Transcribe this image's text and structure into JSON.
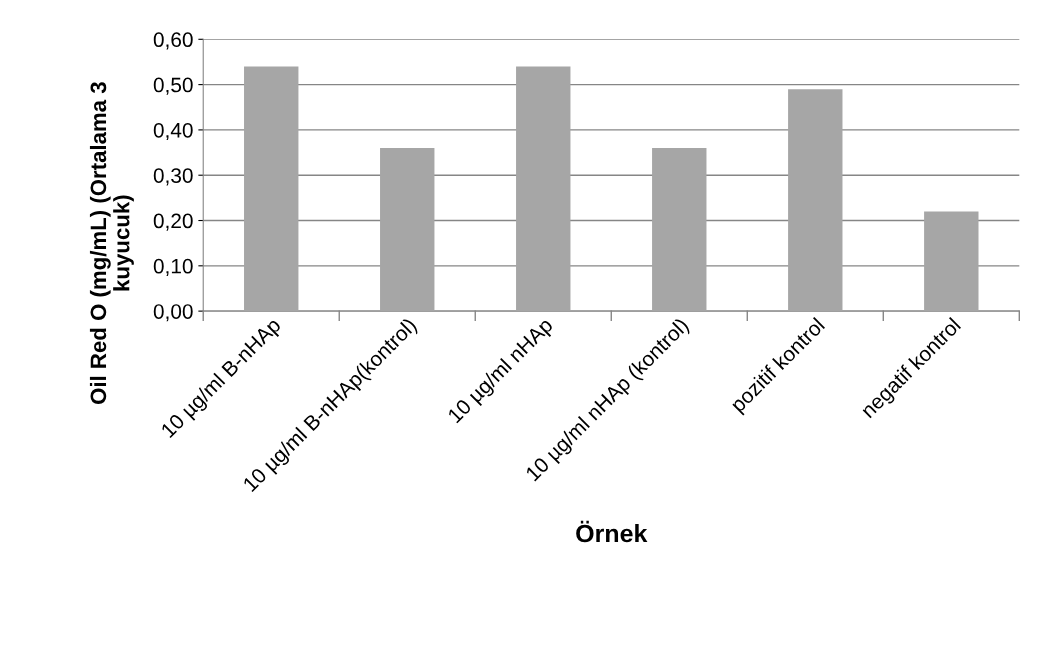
{
  "chart_data": {
    "type": "bar",
    "xlabel": "Örnek",
    "ylabel": "Oil Red O (mg/mL) (Ortalama 3\nkuyucuk)",
    "categories": [
      "10 µg/ml B-nHAp",
      "10 µg/ml B-nHAp(kontrol)",
      "10 µg/ml nHAp",
      "10 µg/ml nHAp (kontrol)",
      "pozitif kontrol",
      "negatif kontrol"
    ],
    "values": [
      0.54,
      0.36,
      0.54,
      0.36,
      0.49,
      0.22
    ],
    "color": "#a6a6a6",
    "ylim": [
      0,
      0.6
    ],
    "yticks": [
      {
        "value": 0,
        "label": "0,00"
      },
      {
        "value": 0.1,
        "label": "0,10"
      },
      {
        "value": 0.2,
        "label": "0,20"
      },
      {
        "value": 0.3,
        "label": "0,30"
      },
      {
        "value": 0.4,
        "label": "0,40"
      },
      {
        "value": 0.5,
        "label": "0,50"
      },
      {
        "value": 0.6,
        "label": "0,60"
      }
    ],
    "grid": "y",
    "legend": false
  }
}
